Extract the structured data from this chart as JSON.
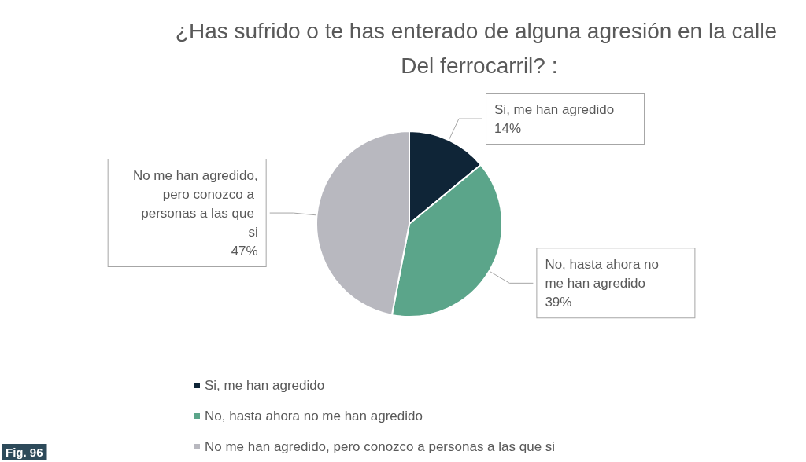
{
  "chart_data": {
    "type": "pie",
    "title": "¿Has sufrido o te has enterado de alguna agresión en la calle Del ferrocarril? :",
    "categories": [
      "Si, me han agredido",
      "No, hasta ahora no me han agredido",
      "No me han agredido, pero conozco a personas a las que si"
    ],
    "values": [
      14,
      39,
      47
    ],
    "colors": [
      "#0f2537",
      "#5ba58a",
      "#b8b8bf"
    ],
    "value_labels": [
      "14%",
      "39%",
      "47%"
    ],
    "legend": "bottom",
    "annotations": [
      "Fig. 96"
    ]
  }
}
